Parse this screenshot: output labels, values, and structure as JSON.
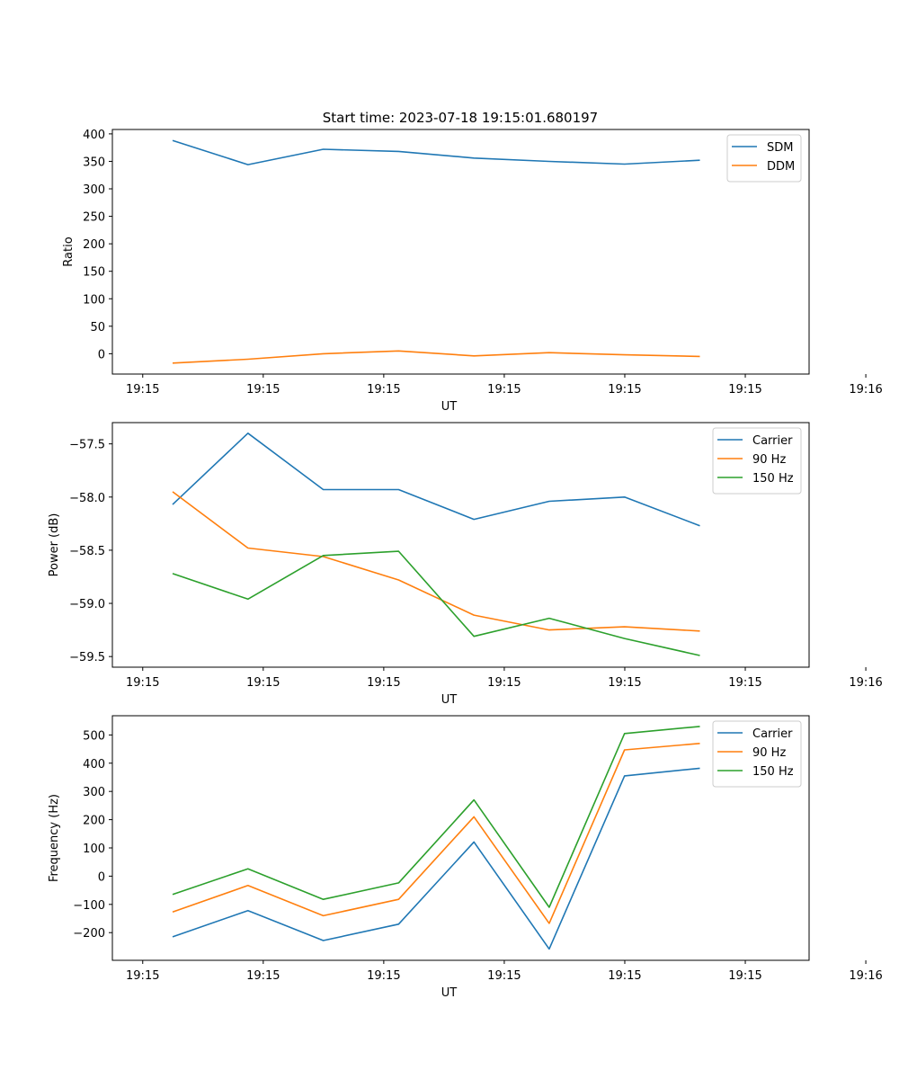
{
  "figure_title": "Start time: 2023-07-18 19:15:01.680197",
  "colors": {
    "blue": "#1f77b4",
    "orange": "#ff7f0e",
    "green": "#2ca02c",
    "axis": "#000000"
  },
  "chart_data": [
    {
      "type": "line",
      "title": "Start time: 2023-07-18 19:15:01.680197",
      "xlabel": "UT",
      "ylabel": "Ratio",
      "x_tick_labels": [
        "19:15",
        "19:15",
        "19:15",
        "19:15",
        "19:15",
        "19:15",
        "19:16"
      ],
      "x": [
        1,
        2,
        3,
        4,
        5,
        6,
        7,
        8
      ],
      "xlim": [
        0.2,
        9.45
      ],
      "ylim": [
        -37,
        408
      ],
      "yticks": [
        0,
        50,
        100,
        150,
        200,
        250,
        300,
        350,
        400
      ],
      "grid": false,
      "legend_position": "top-right",
      "series": [
        {
          "name": "SDM",
          "color": "#1f77b4",
          "values": [
            388,
            344,
            372,
            368,
            356,
            350,
            345,
            352
          ]
        },
        {
          "name": "DDM",
          "color": "#ff7f0e",
          "values": [
            -17,
            -10,
            0,
            5,
            -4,
            2,
            -2,
            -5
          ]
        }
      ]
    },
    {
      "type": "line",
      "title": "",
      "xlabel": "UT",
      "ylabel": "Power (dB)",
      "x_tick_labels": [
        "19:15",
        "19:15",
        "19:15",
        "19:15",
        "19:15",
        "19:15",
        "19:16"
      ],
      "x": [
        1,
        2,
        3,
        4,
        5,
        6,
        7,
        8
      ],
      "xlim": [
        0.2,
        9.45
      ],
      "ylim": [
        -59.6,
        -57.3
      ],
      "yticks": [
        -57.5,
        -58.0,
        -58.5,
        -59.0,
        -59.5
      ],
      "ytick_labels": [
        "−57.5",
        "−58.0",
        "−58.5",
        "−59.0",
        "−59.5"
      ],
      "grid": false,
      "legend_position": "top-right",
      "series": [
        {
          "name": "Carrier",
          "color": "#1f77b4",
          "values": [
            -58.07,
            -57.4,
            -57.93,
            -57.93,
            -58.21,
            -58.04,
            -58.0,
            -58.27
          ]
        },
        {
          "name": "90 Hz",
          "color": "#ff7f0e",
          "values": [
            -57.95,
            -58.48,
            -58.56,
            -58.78,
            -59.11,
            -59.25,
            -59.22,
            -59.26
          ]
        },
        {
          "name": "150 Hz",
          "color": "#2ca02c",
          "values": [
            -58.72,
            -58.96,
            -58.55,
            -58.51,
            -59.31,
            -59.14,
            -59.33,
            -59.49
          ]
        }
      ]
    },
    {
      "type": "line",
      "title": "",
      "xlabel": "UT",
      "ylabel": "Frequency (Hz)",
      "x_tick_labels": [
        "19:15",
        "19:15",
        "19:15",
        "19:15",
        "19:15",
        "19:15",
        "19:16"
      ],
      "x": [
        1,
        2,
        3,
        4,
        5,
        6,
        7,
        8
      ],
      "xlim": [
        0.2,
        9.45
      ],
      "ylim": [
        -298,
        568
      ],
      "yticks": [
        500,
        400,
        300,
        200,
        100,
        0,
        -100,
        -200
      ],
      "ytick_labels": [
        "500",
        "400",
        "300",
        "200",
        "100",
        "0",
        "−100",
        "−200"
      ],
      "grid": false,
      "legend_position": "top-right",
      "series": [
        {
          "name": "Carrier",
          "color": "#1f77b4",
          "values": [
            -215,
            -122,
            -228,
            -170,
            121,
            -258,
            355,
            382
          ]
        },
        {
          "name": "90 Hz",
          "color": "#ff7f0e",
          "values": [
            -127,
            -33,
            -140,
            -82,
            210,
            -167,
            447,
            470
          ]
        },
        {
          "name": "150 Hz",
          "color": "#2ca02c",
          "values": [
            -65,
            26,
            -82,
            -24,
            270,
            -110,
            505,
            530
          ]
        }
      ]
    }
  ]
}
